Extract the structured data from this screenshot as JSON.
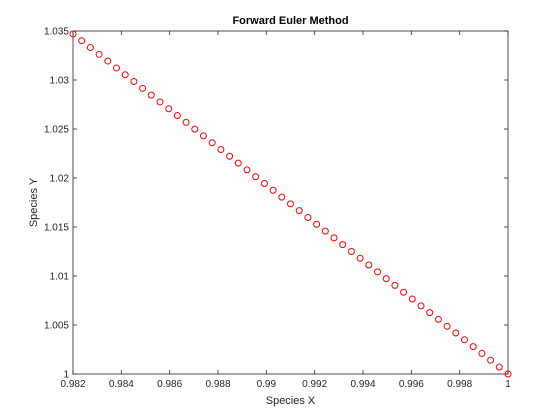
{
  "chart_data": {
    "type": "scatter",
    "title": "Forward Euler Method",
    "xlabel": "Species X",
    "ylabel": "Species Y",
    "xlim": [
      0.982,
      1.0
    ],
    "ylim": [
      1.0,
      1.035
    ],
    "xticks": [
      0.982,
      0.984,
      0.986,
      0.988,
      0.99,
      0.992,
      0.994,
      0.996,
      0.998,
      1
    ],
    "xtick_labels": [
      "0.982",
      "0.984",
      "0.986",
      "0.988",
      "0.99",
      "0.992",
      "0.994",
      "0.996",
      "0.998",
      "1"
    ],
    "yticks": [
      1,
      1.005,
      1.01,
      1.015,
      1.02,
      1.025,
      1.03,
      1.035
    ],
    "ytick_labels": [
      "1",
      "1.005",
      "1.01",
      "1.015",
      "1.02",
      "1.025",
      "1.03",
      "1.035"
    ],
    "grid": false,
    "marker": "circle-open",
    "color": "#ff0000",
    "series": [
      {
        "x": [
          0.982,
          0.98236,
          0.98272,
          0.98308,
          0.98344,
          0.9838,
          0.98416,
          0.98452,
          0.98488,
          0.98524,
          0.9856,
          0.98596,
          0.98632,
          0.98668,
          0.98704,
          0.9874,
          0.98776,
          0.98812,
          0.98848,
          0.98884,
          0.9892,
          0.98956,
          0.98992,
          0.99028,
          0.99064,
          0.991,
          0.99136,
          0.99172,
          0.99208,
          0.99244,
          0.9928,
          0.99316,
          0.99352,
          0.99388,
          0.99424,
          0.9946,
          0.99496,
          0.99532,
          0.99568,
          0.99604,
          0.9964,
          0.99676,
          0.99712,
          0.99748,
          0.99784,
          0.9982,
          0.99856,
          0.99892,
          0.99928,
          0.99964,
          1.0
        ],
        "y": [
          1.0347,
          1.03401,
          1.03331,
          1.03262,
          1.03193,
          1.03123,
          1.03054,
          1.02985,
          1.02915,
          1.02846,
          1.02776,
          1.02707,
          1.02638,
          1.02568,
          1.02499,
          1.0243,
          1.0236,
          1.02291,
          1.02222,
          1.02152,
          1.02083,
          1.02013,
          1.01944,
          1.01875,
          1.01805,
          1.01736,
          1.01667,
          1.01597,
          1.01528,
          1.01458,
          1.01389,
          1.0132,
          1.0125,
          1.01181,
          1.01112,
          1.01042,
          1.00973,
          1.00904,
          1.00834,
          1.00765,
          1.00695,
          1.00626,
          1.00557,
          1.00487,
          1.00418,
          1.00349,
          1.00279,
          1.0021,
          1.00141,
          1.00071,
          1.0
        ]
      }
    ]
  }
}
